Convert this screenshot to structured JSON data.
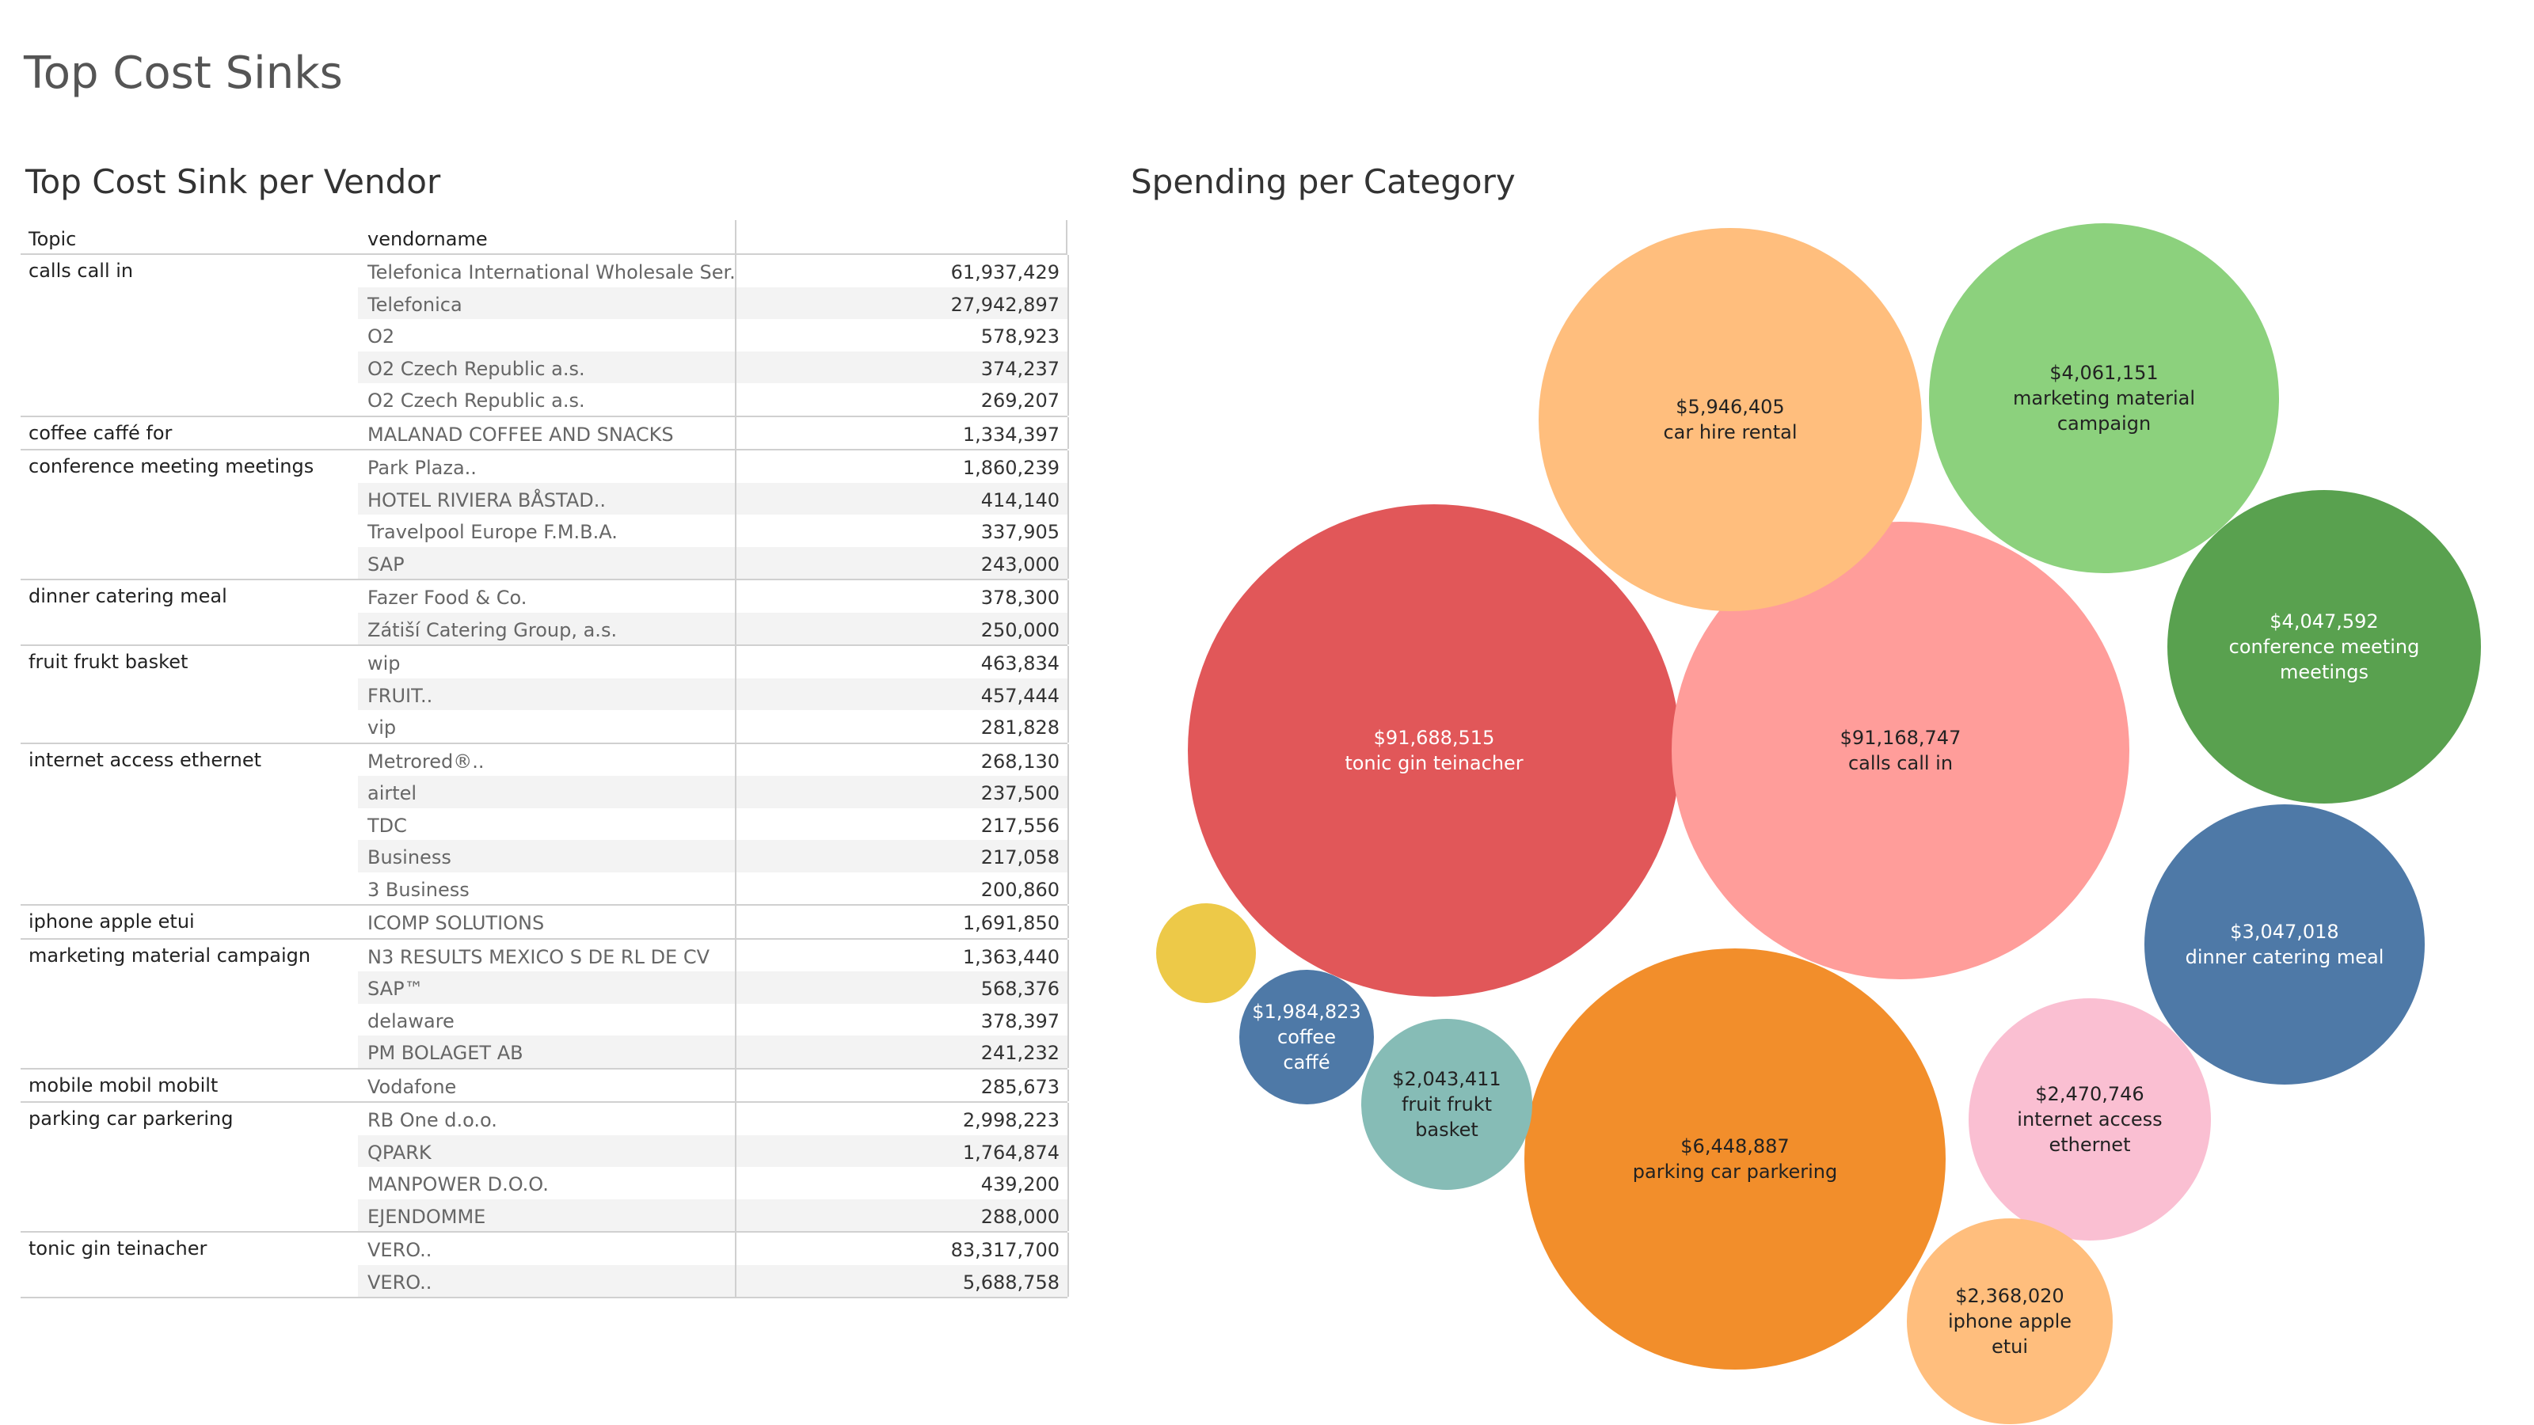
{
  "dashboard": {
    "title": "Top Cost Sinks"
  },
  "table": {
    "title": "Top Cost Sink per Vendor",
    "headers": {
      "topic": "Topic",
      "vendor": "vendorname"
    },
    "groups": [
      {
        "topic": "calls call in",
        "rows": [
          {
            "vendor": "Telefonica International Wholesale Ser..",
            "amount": "61,937,429"
          },
          {
            "vendor": "Telefonica",
            "amount": "27,942,897"
          },
          {
            "vendor": "O2",
            "amount": "578,923"
          },
          {
            "vendor": "O2 Czech Republic a.s.",
            "amount": "374,237"
          },
          {
            "vendor": "O2 Czech Republic a.s.",
            "amount": "269,207"
          }
        ]
      },
      {
        "topic": "coffee caffé for",
        "rows": [
          {
            "vendor": "MALANAD COFFEE AND SNACKS",
            "amount": "1,334,397"
          }
        ]
      },
      {
        "topic": "conference meeting meetings",
        "rows": [
          {
            "vendor": "Park Plaza..",
            "amount": "1,860,239"
          },
          {
            "vendor": "HOTEL RIVIERA BÅSTAD..",
            "amount": "414,140"
          },
          {
            "vendor": "Travelpool Europe F.M.B.A.",
            "amount": "337,905"
          },
          {
            "vendor": "SAP",
            "amount": "243,000"
          }
        ]
      },
      {
        "topic": "dinner catering meal",
        "rows": [
          {
            "vendor": "Fazer Food & Co.",
            "amount": "378,300"
          },
          {
            "vendor": "Zátiší Catering Group, a.s.",
            "amount": "250,000"
          }
        ]
      },
      {
        "topic": "fruit frukt basket",
        "rows": [
          {
            "vendor": "wip",
            "amount": "463,834"
          },
          {
            "vendor": "FRUIT..",
            "amount": "457,444"
          },
          {
            "vendor": "vip",
            "amount": "281,828"
          }
        ]
      },
      {
        "topic": "internet access ethernet",
        "rows": [
          {
            "vendor": "Metrored®..",
            "amount": "268,130"
          },
          {
            "vendor": "airtel",
            "amount": "237,500"
          },
          {
            "vendor": "TDC",
            "amount": "217,556"
          },
          {
            "vendor": "Business",
            "amount": "217,058"
          },
          {
            "vendor": "3 Business",
            "amount": "200,860"
          }
        ]
      },
      {
        "topic": "iphone apple etui",
        "rows": [
          {
            "vendor": "ICOMP SOLUTIONS",
            "amount": "1,691,850"
          }
        ]
      },
      {
        "topic": "marketing material campaign",
        "rows": [
          {
            "vendor": "N3 RESULTS MEXICO S DE RL DE CV",
            "amount": "1,363,440"
          },
          {
            "vendor": "SAP™",
            "amount": "568,376"
          },
          {
            "vendor": "delaware",
            "amount": "378,397"
          },
          {
            "vendor": "PM BOLAGET AB",
            "amount": "241,232"
          }
        ]
      },
      {
        "topic": "mobile mobil mobilt",
        "rows": [
          {
            "vendor": "Vodafone",
            "amount": "285,673"
          }
        ]
      },
      {
        "topic": "parking car parkering",
        "rows": [
          {
            "vendor": "RB One d.o.o.",
            "amount": "2,998,223"
          },
          {
            "vendor": "QPARK",
            "amount": "1,764,874"
          },
          {
            "vendor": "MANPOWER D.O.O.",
            "amount": "439,200"
          },
          {
            "vendor": "EJENDOMME",
            "amount": "288,000"
          }
        ]
      },
      {
        "topic": "tonic gin teinacher",
        "rows": [
          {
            "vendor": "VERO..",
            "amount": "83,317,700"
          },
          {
            "vendor": "VERO..",
            "amount": "5,688,758"
          }
        ]
      }
    ]
  },
  "chart_data": {
    "type": "bubble",
    "title": "Spending per Category",
    "bubbles": [
      {
        "label": "tonic gin teinacher",
        "value_text": "$91,688,515",
        "value": 91688515,
        "color": "#e15759",
        "text_color": "#ffffff"
      },
      {
        "label": "calls call in",
        "value_text": "$91,168,747",
        "value": 91168747,
        "color": "#ff9d9a",
        "text_color": "#222222"
      },
      {
        "label": "parking car parkering",
        "value_text": "$6,448,887",
        "value": 6448887,
        "color": "#f28e2b",
        "text_color": "#222222"
      },
      {
        "label": "car hire rental",
        "value_text": "$5,946,405",
        "value": 5946405,
        "color": "#ffbe7d",
        "text_color": "#222222"
      },
      {
        "label": "marketing material campaign",
        "value_text": "$4,061,151",
        "value": 4061151,
        "color": "#8cd17d",
        "text_color": "#222222"
      },
      {
        "label": "conference meeting meetings",
        "value_text": "$4,047,592",
        "value": 4047592,
        "color": "#59a14f",
        "text_color": "#ffffff"
      },
      {
        "label": "dinner catering meal",
        "value_text": "$3,047,018",
        "value": 3047018,
        "color": "#4e79a7",
        "text_color": "#ffffff"
      },
      {
        "label": "internet access ethernet",
        "value_text": "$2,470,746",
        "value": 2470746,
        "color": "#fabfd2",
        "text_color": "#222222"
      },
      {
        "label": "iphone apple etui",
        "value_text": "$2,368,020",
        "value": 2368020,
        "color": "#ffbe7d",
        "text_color": "#222222"
      },
      {
        "label": "fruit frukt basket",
        "value_text": "$2,043,411",
        "value": 2043411,
        "color": "#86bcb6",
        "text_color": "#222222"
      },
      {
        "label": "coffee caffé",
        "value_text": "$1,984,823",
        "value": 1984823,
        "color": "#4e79a7",
        "text_color": "#ffffff"
      },
      {
        "label": "",
        "value_text": "",
        "value": null,
        "color": "#edc948",
        "text_color": "#222222"
      }
    ]
  }
}
